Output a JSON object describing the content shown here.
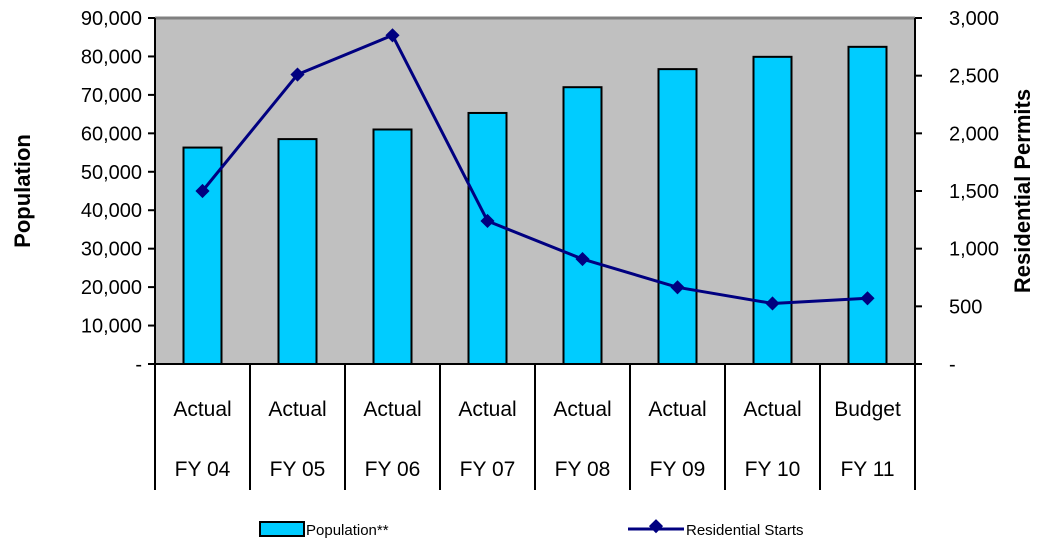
{
  "chart_data": {
    "type": "bar",
    "categories_top": [
      "Actual",
      "Actual",
      "Actual",
      "Actual",
      "Actual",
      "Actual",
      "Actual",
      "Budget"
    ],
    "categories": [
      "FY 04",
      "FY 05",
      "FY 06",
      "FY 07",
      "FY 08",
      "FY 09",
      "FY 10",
      "FY 11"
    ],
    "ylabel": "Population",
    "y2label": "Residential Permits",
    "ylim": [
      0,
      90000
    ],
    "y2lim": [
      0,
      3000
    ],
    "yticks": [
      "-",
      "10,000",
      "20,000",
      "30,000",
      "40,000",
      "50,000",
      "60,000",
      "70,000",
      "80,000",
      "90,000"
    ],
    "y2ticks": [
      "-",
      "500",
      "1,000",
      "1,500",
      "2,000",
      "2,500",
      "3,000"
    ],
    "series": [
      {
        "name": "Population**",
        "type": "bar",
        "axis": "left",
        "color": "#00CCFF",
        "values": [
          56300,
          58500,
          61000,
          65300,
          72000,
          76700,
          79900,
          82500
        ]
      },
      {
        "name": "Residential Starts",
        "type": "line",
        "axis": "right",
        "color": "#000080",
        "values": [
          1500,
          2510,
          2850,
          1240,
          910,
          665,
          525,
          570
        ]
      }
    ],
    "plot_background": "#C0C0C0",
    "grid": false,
    "legend_position": "bottom"
  }
}
